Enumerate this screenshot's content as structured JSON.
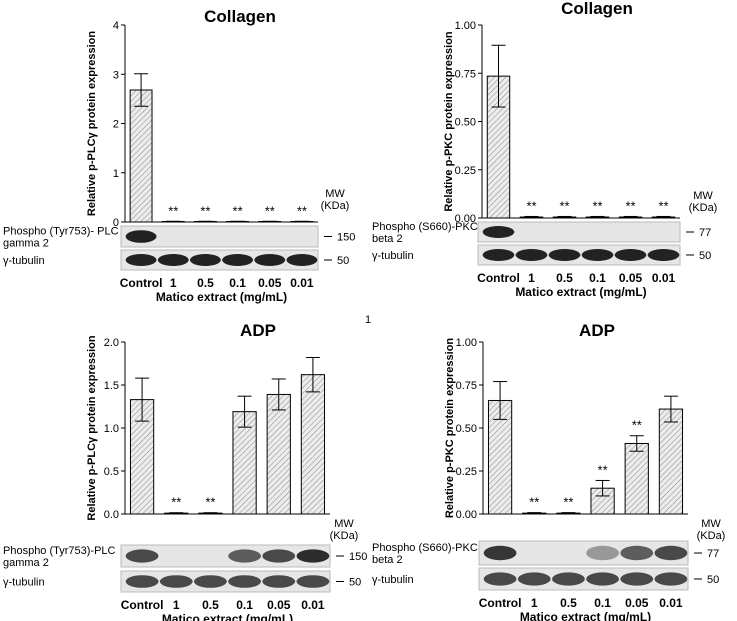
{
  "page_number": "1",
  "chart_data": [
    {
      "type": "bar",
      "title": "Collagen",
      "y_label": "Relative p-PLCγ protein expression",
      "x_label": "Matico extract (mg/mL)",
      "categories": [
        "Control",
        "1",
        "0.5",
        "0.1",
        "0.05",
        "0.01"
      ],
      "values": [
        2.68,
        0.01,
        0.01,
        0.01,
        0.01,
        0.01
      ],
      "errors": [
        0.33,
        0.005,
        0.005,
        0.005,
        0.005,
        0.005
      ],
      "annotations": [
        null,
        "**",
        "**",
        "**",
        "**",
        "**"
      ],
      "color": "#e0e0e0",
      "ylim": [
        0,
        4
      ],
      "yticks": [
        0,
        1,
        2,
        3,
        4
      ],
      "mw_label": [
        "MW",
        "(KDa)"
      ],
      "blots": [
        {
          "label": [
            "Phospho (Tyr753)- PLC",
            "gamma 2"
          ],
          "mw": 150
        },
        {
          "label": [
            "γ-tubulin"
          ],
          "mw": 50
        }
      ]
    },
    {
      "type": "bar",
      "title": "Collagen",
      "y_label": "Relative p-PKC protein expression",
      "x_label": "Matico extract (mg/mL)",
      "categories": [
        "Control",
        "1",
        "0.5",
        "0.1",
        "0.05",
        "0.01"
      ],
      "values": [
        0.735,
        0.005,
        0.005,
        0.005,
        0.005,
        0.005
      ],
      "errors": [
        0.16,
        0.003,
        0.003,
        0.003,
        0.003,
        0.003
      ],
      "annotations": [
        null,
        "**",
        "**",
        "**",
        "**",
        "**"
      ],
      "color": "#e0e0e0",
      "ylim": [
        0,
        1
      ],
      "yticks": [
        {
          "value": 0,
          "label": "0.00"
        },
        0.25,
        {
          "value": 0.5,
          "label": "0.50"
        },
        0.75,
        {
          "value": 1,
          "label": "1.00"
        }
      ],
      "mw_label": [
        "MW",
        "(KDa)"
      ],
      "blots": [
        {
          "label": [
            "Phospho (S660)-PKC",
            "beta 2"
          ],
          "mw": 77
        },
        {
          "label": [
            "γ-tubulin"
          ],
          "mw": 50
        }
      ]
    },
    {
      "type": "bar",
      "title": "ADP",
      "y_label": "Relative p-PLCγ protein expression",
      "x_label": "Matico extract (mg/mL)",
      "categories": [
        "Control",
        "1",
        "0.5",
        "0.1",
        "0.05",
        "0.01"
      ],
      "values": [
        1.33,
        0.01,
        0.01,
        1.19,
        1.39,
        1.62
      ],
      "errors": [
        0.25,
        0.005,
        0.005,
        0.18,
        0.18,
        0.2
      ],
      "annotations": [
        null,
        "**",
        "**",
        null,
        null,
        null
      ],
      "color": "#e0e0e0",
      "ylim": [
        0,
        2
      ],
      "yticks": [
        {
          "value": 0,
          "label": "0.0"
        },
        0.5,
        {
          "value": 1,
          "label": "1.0"
        },
        1.5,
        {
          "value": 2,
          "label": "2.0"
        }
      ],
      "mw_label": [
        "MW",
        "(KDa)"
      ],
      "blots": [
        {
          "label": [
            "Phospho (Tyr753)-PLC",
            "gamma 2"
          ],
          "mw": 150
        },
        {
          "label": [
            "γ-tubulin"
          ],
          "mw": 50
        }
      ]
    },
    {
      "type": "bar",
      "title": "ADP",
      "y_label": "Relative p-PKC protein expression",
      "x_label": "Matico extract (mg/mL)",
      "categories": [
        "Control",
        "1",
        "0.5",
        "0.1",
        "0.05",
        "0.01"
      ],
      "values": [
        0.66,
        0.005,
        0.005,
        0.15,
        0.41,
        0.61
      ],
      "errors": [
        0.11,
        0.003,
        0.003,
        0.045,
        0.045,
        0.075
      ],
      "annotations": [
        null,
        "**",
        "**",
        "**",
        "**",
        null
      ],
      "color": "#e0e0e0",
      "ylim": [
        0,
        1
      ],
      "yticks": [
        {
          "value": 0,
          "label": "0.00"
        },
        0.25,
        {
          "value": 0.5,
          "label": "0.50"
        },
        0.75,
        {
          "value": 1,
          "label": "1.00"
        }
      ],
      "mw_label": [
        "MW",
        "(KDa)"
      ],
      "blots": [
        {
          "label": [
            "Phospho (S660)-PKC",
            "beta 2"
          ],
          "mw": 77
        },
        {
          "label": [
            "γ-tubulin"
          ],
          "mw": 50
        }
      ]
    }
  ]
}
